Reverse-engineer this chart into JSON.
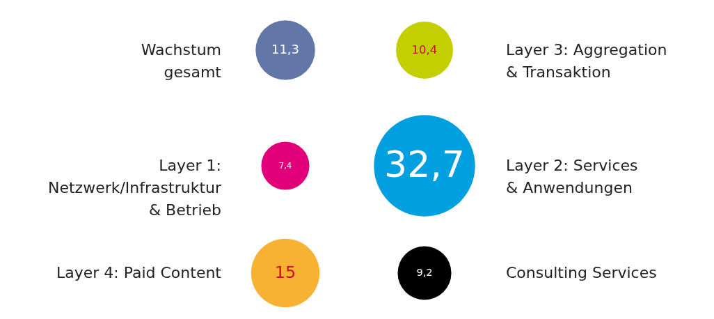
{
  "chart_data": {
    "type": "other",
    "categories": [
      "Wachstum\ngesamt",
      "Layer 3: Aggregation\n& Transaktion",
      "Layer 1:\nNetzwerk/Infrastruktur\n& Betrieb",
      "Layer 2: Services\n& Anwendungen",
      "Layer 4: Paid Content",
      "Consulting Services"
    ],
    "values": [
      11.3,
      10.4,
      7.4,
      32.7,
      15,
      9.2
    ],
    "value_labels": [
      "11,3",
      "10,4",
      "7,4",
      "32,7",
      "15",
      "9,2"
    ],
    "colors": [
      "#6277a8",
      "#c3cf00",
      "#e2007a",
      "#009fe0",
      "#f7b234",
      "#000000"
    ]
  }
}
